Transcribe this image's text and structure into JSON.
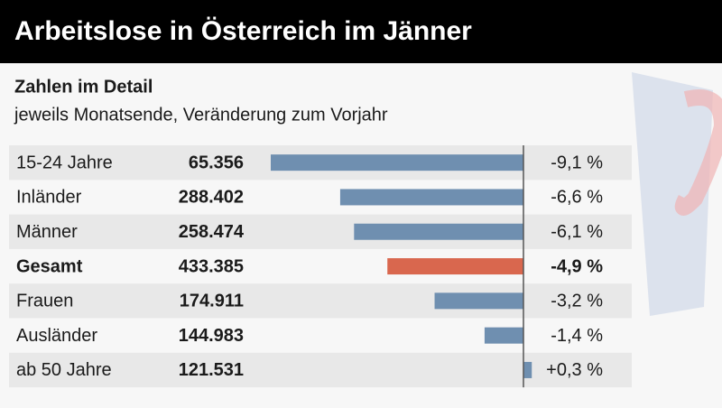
{
  "chart_data": {
    "type": "bar",
    "title": "Arbeitslose in Österreich im Jänner",
    "subtitle": "Zahlen im Detail",
    "note": "jeweils Monatsende, Veränderung zum Vorjahr",
    "categories": [
      "15-24 Jahre",
      "Inländer",
      "Männer",
      "Gesamt",
      "Frauen",
      "Ausländer",
      "ab 50 Jahre"
    ],
    "counts": [
      "65.356",
      "288.402",
      "258.474",
      "433.385",
      "174.911",
      "144.983",
      "121.531"
    ],
    "values": [
      -9.1,
      -6.6,
      -6.1,
      -4.9,
      -3.2,
      -1.4,
      0.3
    ],
    "value_labels": [
      "-9,1 %",
      "-6,6 %",
      "-6,1 %",
      "-4,9 %",
      "-3,2 %",
      "-1,4 %",
      "+0,3 %"
    ],
    "color": "#6f8fb0",
    "highlight": {
      "index": 3,
      "color": "#d9674e"
    }
  }
}
